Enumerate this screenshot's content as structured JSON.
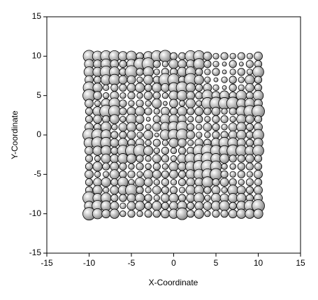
{
  "chart_data": {
    "type": "bubble",
    "x_label": "X-Coordinate",
    "y_label": "Y-Coordinate",
    "xlim": [
      -15,
      15
    ],
    "ylim": [
      -15,
      15
    ],
    "xticks": [
      -15,
      -10,
      -5,
      0,
      5,
      10,
      15
    ],
    "yticks": [
      -15,
      -10,
      -5,
      0,
      5,
      10,
      15
    ],
    "color": "#b4b4b4",
    "series": [
      {
        "x": [
          -10,
          -9,
          -8,
          -7,
          -6,
          -5,
          -4,
          -3,
          -2,
          -1,
          0,
          1,
          2,
          3,
          4,
          5,
          6,
          7,
          8,
          9,
          10,
          -10,
          -9,
          -8,
          -7,
          -6,
          -5,
          -4,
          -3,
          -2,
          -1,
          0,
          1,
          2,
          3,
          4,
          5,
          6,
          7,
          8,
          9,
          10,
          -10,
          -9,
          -8,
          -7,
          -6,
          -5,
          -4,
          -3,
          -2,
          -1,
          0,
          1,
          2,
          3,
          4,
          5,
          6,
          7,
          8,
          9,
          10,
          -10,
          -9,
          -8,
          -7,
          -6,
          -5,
          -4,
          -3,
          -2,
          -1,
          0,
          1,
          2,
          3,
          4,
          5,
          6,
          7,
          8,
          9,
          10,
          -10,
          -9,
          -8,
          -7,
          -6,
          -5,
          -4,
          -3,
          -2,
          -1,
          0,
          1,
          2,
          3,
          4,
          5,
          6,
          7,
          8,
          9,
          10,
          -10,
          -9,
          -8,
          -7,
          -6,
          -5,
          -4,
          -3,
          -2,
          -1,
          0,
          1,
          2,
          3,
          4,
          5,
          6,
          7,
          8,
          9,
          10,
          -10,
          -9,
          -8,
          -7,
          -6,
          -5,
          -4,
          -3,
          -2,
          -1,
          0,
          1,
          2,
          3,
          4,
          5,
          6,
          7,
          8,
          9,
          10,
          -10,
          -9,
          -8,
          -7,
          -6,
          -5,
          -4,
          -3,
          -2,
          -1,
          0,
          1,
          2,
          3,
          4,
          5,
          6,
          7,
          8,
          9,
          10,
          -10,
          -9,
          -8,
          -7,
          -6,
          -5,
          -4,
          -3,
          -2,
          -1,
          0,
          1,
          2,
          3,
          4,
          5,
          6,
          7,
          8,
          9,
          10,
          -10,
          -9,
          -8,
          -7,
          -6,
          -5,
          -4,
          -3,
          -2,
          -1,
          0,
          1,
          2,
          3,
          4,
          5,
          6,
          7,
          8,
          9,
          10,
          -10,
          -9,
          -8,
          -7,
          -6,
          -5,
          -4,
          -3,
          -2,
          -1,
          0,
          1,
          2,
          3,
          4,
          5,
          6,
          7,
          8,
          9,
          10,
          -10,
          -9,
          -8,
          -7,
          -6,
          -5,
          -4,
          -3,
          -2,
          -1,
          0,
          1,
          2,
          3,
          4,
          5,
          6,
          7,
          8,
          9,
          10,
          -10,
          -9,
          -8,
          -7,
          -6,
          -5,
          -4,
          -3,
          -2,
          -1,
          0,
          1,
          2,
          3,
          4,
          5,
          6,
          7,
          8,
          9,
          10,
          -10,
          -9,
          -8,
          -7,
          -6,
          -5,
          -4,
          -3,
          -2,
          -1,
          0,
          1,
          2,
          3,
          4,
          5,
          6,
          7,
          8,
          9,
          10,
          -10,
          -9,
          -8,
          -7,
          -6,
          -5,
          -4,
          -3,
          -2,
          -1,
          0,
          1,
          2,
          3,
          4,
          5,
          6,
          7,
          8,
          9,
          10,
          -10,
          -9,
          -8,
          -7,
          -6,
          -5,
          -4,
          -3,
          -2,
          -1,
          0,
          1,
          2,
          3,
          4,
          5,
          6,
          7,
          8,
          9,
          10,
          -10,
          -9,
          -8,
          -7,
          -6,
          -5,
          -4,
          -3,
          -2,
          -1,
          0,
          1,
          2,
          3,
          4,
          5,
          6,
          7,
          8,
          9,
          10,
          -10,
          -9,
          -8,
          -7,
          -6,
          -5,
          -4,
          -3,
          -2,
          -1,
          0,
          1,
          2,
          3,
          4,
          5,
          6,
          7,
          8,
          9,
          10,
          -10,
          -9,
          -8,
          -7,
          -6,
          -5,
          -4,
          -3,
          -2,
          -1,
          0,
          1,
          2,
          3,
          4,
          5,
          6,
          7,
          8,
          9,
          10,
          -10,
          -9,
          -8,
          -7,
          -6,
          -5,
          -4,
          -3,
          -2,
          -1,
          0,
          1,
          2,
          3,
          4,
          5,
          6,
          7,
          8,
          9,
          10,
          -10,
          -9,
          -8,
          -7,
          -6,
          -5,
          -4,
          -3,
          -2,
          -1,
          0,
          1,
          2,
          3,
          4,
          5,
          6,
          7,
          8,
          9,
          10
        ],
        "values": [
          10,
          10,
          10,
          10,
          10,
          10,
          10,
          10,
          10,
          10,
          10,
          10,
          10,
          10,
          10,
          10,
          10,
          10,
          10,
          10,
          10,
          9,
          9,
          9,
          9,
          9,
          9,
          9,
          9,
          9,
          9,
          9,
          9,
          9,
          9,
          9,
          9,
          9,
          9,
          9,
          9,
          9,
          8,
          8,
          8,
          8,
          8,
          8,
          8,
          8,
          8,
          8,
          8,
          8,
          8,
          8,
          8,
          8,
          8,
          8,
          8,
          8,
          8,
          7,
          7,
          7,
          7,
          7,
          7,
          7,
          7,
          7,
          7,
          7,
          7,
          7,
          7,
          7,
          7,
          7,
          7,
          7,
          7,
          7,
          6,
          6,
          6,
          6,
          6,
          6,
          6,
          6,
          6,
          6,
          6,
          6,
          6,
          6,
          6,
          6,
          6,
          6,
          6,
          6,
          6,
          5,
          5,
          5,
          5,
          5,
          5,
          5,
          5,
          5,
          5,
          5,
          5,
          5,
          5,
          5,
          5,
          5,
          5,
          5,
          5,
          5,
          4,
          4,
          4,
          4,
          4,
          4,
          4,
          4,
          4,
          4,
          4,
          4,
          4,
          4,
          4,
          4,
          4,
          4,
          4,
          4,
          4,
          3,
          3,
          3,
          3,
          3,
          3,
          3,
          3,
          3,
          3,
          3,
          3,
          3,
          3,
          3,
          3,
          3,
          3,
          3,
          3,
          3,
          2,
          2,
          2,
          2,
          2,
          2,
          2,
          2,
          2,
          2,
          2,
          2,
          2,
          2,
          2,
          2,
          2,
          2,
          2,
          2,
          2,
          1,
          1,
          1,
          1,
          1,
          1,
          1,
          1,
          1,
          1,
          1,
          1,
          1,
          1,
          1,
          1,
          1,
          1,
          1,
          1,
          1,
          0,
          0,
          0,
          0,
          0,
          0,
          0,
          0,
          0,
          0,
          0,
          0,
          0,
          0,
          0,
          0,
          0,
          0,
          0,
          0,
          0,
          -1,
          -1,
          -1,
          -1,
          -1,
          -1,
          -1,
          -1,
          -1,
          -1,
          -1,
          -1,
          -1,
          -1,
          -1,
          -1,
          -1,
          -1,
          -1,
          -1,
          -1,
          -2,
          -2,
          -2,
          -2,
          -2,
          -2,
          -2,
          -2,
          -2,
          -2,
          -2,
          -2,
          -2,
          -2,
          -2,
          -2,
          -2,
          -2,
          -2,
          -2,
          -2,
          -3,
          -3,
          -3,
          -3,
          -3,
          -3,
          -3,
          -3,
          -3,
          -3,
          -3,
          -3,
          -3,
          -3,
          -3,
          -3,
          -3,
          -3,
          -3,
          -3,
          -3,
          -4,
          -4,
          -4,
          -4,
          -4,
          -4,
          -4,
          -4,
          -4,
          -4,
          -4,
          -4,
          -4,
          -4,
          -4,
          -4,
          -4,
          -4,
          -4,
          -4,
          -4,
          -5,
          -5,
          -5,
          -5,
          -5,
          -5,
          -5,
          -5,
          -5,
          -5,
          -5,
          -5,
          -5,
          -5,
          -5,
          -5,
          -5,
          -5,
          -5,
          -5,
          -5,
          -6,
          -6,
          -6,
          -6,
          -6,
          -6,
          -6,
          -6,
          -6,
          -6,
          -6,
          -6,
          -6,
          -6,
          -6,
          -6,
          -6,
          -6,
          -6,
          -6,
          -6,
          -7,
          -7,
          -7,
          -7,
          -7,
          -7,
          -7,
          -7,
          -7,
          -7,
          -7,
          -7,
          -7,
          -7,
          -7,
          -7,
          -7,
          -7,
          -7,
          -7,
          -7,
          -8,
          -8,
          -8,
          -8,
          -8,
          -8,
          -8,
          -8,
          -8,
          -8,
          -8,
          -8,
          -8,
          -8,
          -8,
          -8,
          -8,
          -8,
          -8,
          -8,
          -8,
          -9,
          -9,
          -9,
          -9,
          -9,
          -9,
          -9,
          -9,
          -9,
          -9,
          -9,
          -9,
          -9,
          -9,
          -9,
          -9,
          -9,
          -9,
          -9,
          -9,
          -9,
          -10,
          -10,
          -10,
          -10,
          -10,
          -10,
          -10,
          -10,
          -10,
          -10,
          -10,
          -10,
          -10,
          -10,
          -10,
          -10,
          -10,
          -10,
          -10,
          -10,
          -10
        ],
        "sizes": [
          8,
          6,
          7,
          7,
          5,
          6,
          3,
          5,
          7,
          8,
          3,
          3,
          7,
          7,
          4,
          2,
          3,
          2,
          3,
          2,
          4,
          5,
          4,
          6,
          4,
          3,
          5,
          8,
          9,
          3,
          2,
          5,
          4,
          4,
          7,
          3,
          2,
          1,
          3,
          1,
          3,
          3,
          6,
          5,
          8,
          6,
          3,
          9,
          3,
          6,
          2,
          3,
          3,
          5,
          6,
          3,
          2,
          3,
          1,
          2,
          3,
          2,
          7,
          4,
          3,
          6,
          7,
          4,
          4,
          2,
          5,
          3,
          9,
          8,
          3,
          9,
          5,
          2,
          1,
          2,
          3,
          2,
          5,
          3,
          8,
          5,
          2,
          3,
          3,
          4,
          5,
          3,
          5,
          4,
          6,
          8,
          5,
          3,
          4,
          2,
          1,
          3,
          2,
          4,
          3,
          9,
          4,
          2,
          4,
          2,
          3,
          2,
          4,
          3,
          2,
          5,
          6,
          4,
          3,
          7,
          4,
          5,
          3,
          6,
          3,
          6,
          4,
          2,
          5,
          7,
          3,
          2,
          3,
          2,
          5,
          1,
          4,
          2,
          5,
          2,
          8,
          9,
          8,
          9,
          5,
          6,
          4,
          3,
          5,
          9,
          8,
          3,
          4,
          5,
          3,
          2,
          4,
          3,
          5,
          3,
          4,
          3,
          4,
          2,
          3,
          6,
          8,
          9,
          3,
          4,
          3,
          5,
          2,
          6,
          4,
          1,
          3,
          6,
          5,
          4,
          2,
          3,
          2,
          3,
          3,
          2,
          5,
          4,
          3,
          4,
          3,
          6,
          2,
          4,
          5,
          3,
          2,
          4,
          5,
          7,
          8,
          3,
          2,
          4,
          3,
          2,
          4,
          5,
          3,
          4,
          9,
          8,
          6,
          3,
          3,
          4,
          2,
          5,
          1,
          6,
          7,
          8,
          4,
          2,
          2,
          3,
          3,
          4,
          5,
          3,
          7,
          6,
          8,
          7,
          4,
          5,
          3,
          4,
          2,
          3,
          2,
          5,
          4,
          2,
          4,
          3,
          5,
          7,
          6,
          4,
          3,
          5,
          4,
          5,
          6,
          3,
          7,
          8,
          9,
          5,
          2,
          3,
          2,
          3,
          3,
          8,
          9,
          7,
          6,
          8,
          7,
          5,
          7,
          3,
          2,
          5,
          4,
          6,
          5,
          3,
          2,
          4,
          3,
          2,
          5,
          7,
          6,
          9,
          6,
          5,
          3,
          3,
          4,
          3,
          3,
          5,
          3,
          4,
          3,
          2,
          3,
          2,
          3,
          2,
          5,
          4,
          6,
          8,
          9,
          7,
          2,
          2,
          3,
          3,
          3,
          4,
          2,
          2,
          5,
          3,
          3,
          2,
          5,
          4,
          3,
          4,
          3,
          5,
          6,
          7,
          8,
          3,
          2,
          3,
          2,
          4,
          3,
          4,
          5,
          3,
          6,
          2,
          5,
          4,
          2,
          3,
          2,
          3,
          4,
          4,
          7,
          3,
          4,
          3,
          2,
          3,
          3,
          3,
          5,
          2,
          4,
          5,
          8,
          3,
          2,
          4,
          3,
          3,
          2,
          5,
          5,
          3,
          4,
          2,
          6,
          4,
          3,
          4,
          9,
          5,
          6,
          3,
          3,
          4,
          5,
          3,
          2,
          4,
          5,
          3,
          4,
          6,
          2,
          5,
          4,
          5,
          5,
          3,
          4,
          5,
          7,
          6,
          4,
          2,
          4,
          5,
          3,
          5,
          3,
          4,
          5,
          3,
          4,
          4,
          5,
          6,
          3,
          5,
          7,
          9,
          9,
          6,
          4,
          5,
          2,
          3,
          2,
          3,
          3,
          4,
          5,
          8,
          3,
          5,
          2,
          3,
          3,
          4,
          5,
          5,
          5
        ]
      }
    ]
  }
}
